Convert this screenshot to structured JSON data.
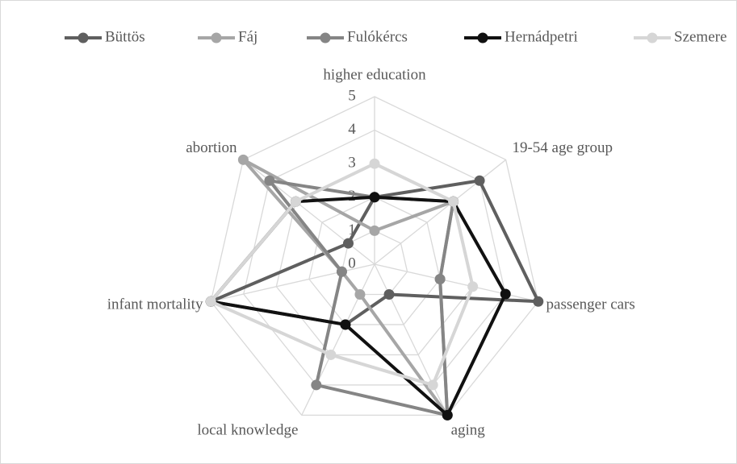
{
  "chart_data": {
    "type": "radar",
    "categories": [
      "higher education",
      "19-54 age group",
      "passenger cars",
      "aging",
      "local knowledge",
      "infant mortality",
      "abortion"
    ],
    "ylim": [
      0,
      5
    ],
    "yticks": [
      0,
      1,
      2,
      3,
      4,
      5
    ],
    "grid": true,
    "legend": "top",
    "series": [
      {
        "name": "Büttös",
        "color": "#5f5f5f",
        "values": [
          2,
          4,
          5,
          1,
          2,
          5,
          1
        ]
      },
      {
        "name": "Fáj",
        "color": "#a6a6a6",
        "values": [
          1,
          3,
          2,
          5,
          1,
          1,
          5
        ]
      },
      {
        "name": "Fulókércs",
        "color": "#858585",
        "values": [
          2,
          3,
          2,
          5,
          4,
          1,
          4
        ]
      },
      {
        "name": "Hernádpetri",
        "color": "#111111",
        "values": [
          2,
          3,
          4,
          5,
          2,
          5,
          3
        ]
      },
      {
        "name": "Szemere",
        "color": "#d6d6d6",
        "values": [
          3,
          3,
          3,
          4,
          3,
          5,
          3
        ]
      }
    ]
  }
}
